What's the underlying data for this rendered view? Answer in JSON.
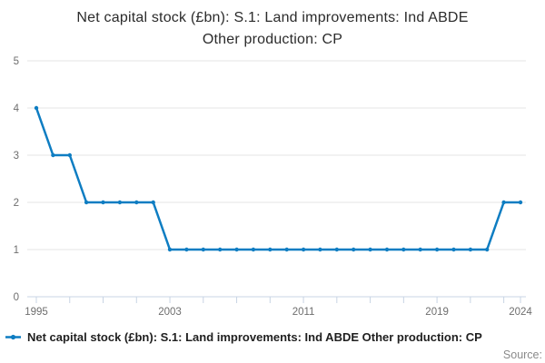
{
  "title": {
    "line1": "Net capital stock (£bn): S.1: Land improvements: Ind ABDE",
    "line2": "Other production: CP"
  },
  "legend": {
    "label": "Net capital stock (£bn): S.1: Land improvements: Ind ABDE Other production: CP"
  },
  "source_label": "Source:",
  "colors": {
    "series": "#0e7dc2",
    "grid": "#e6e6e6",
    "axis": "#c8d4e4",
    "tick_label": "#6e6e6e",
    "title_text": "#2b2b2b",
    "legend_text": "#1f1f1f",
    "source_text": "#8a8a8a"
  },
  "chart_data": {
    "type": "line",
    "title": "Net capital stock (£bn): S.1: Land improvements: Ind ABDE Other production: CP",
    "xlabel": "",
    "ylabel": "",
    "x": [
      1995,
      1996,
      1997,
      1998,
      1999,
      2000,
      2001,
      2002,
      2003,
      2004,
      2005,
      2006,
      2007,
      2008,
      2009,
      2010,
      2011,
      2012,
      2013,
      2014,
      2015,
      2016,
      2017,
      2018,
      2019,
      2020,
      2021,
      2022,
      2023,
      2024
    ],
    "values": [
      4,
      3,
      3,
      2,
      2,
      2,
      2,
      2,
      1,
      1,
      1,
      1,
      1,
      1,
      1,
      1,
      1,
      1,
      1,
      1,
      1,
      1,
      1,
      1,
      1,
      1,
      1,
      1,
      2,
      2
    ],
    "series_name": "Net capital stock (£bn): S.1: Land improvements: Ind ABDE Other production: CP",
    "xlim": [
      1994.5,
      2024.4
    ],
    "ylim": [
      0,
      5
    ],
    "yticks": [
      0,
      1,
      2,
      3,
      4,
      5
    ],
    "xtick_labels": [
      1995,
      2003,
      2011,
      2019,
      2024
    ],
    "minor_xtick_step": 2,
    "grid": true,
    "marker": "circle",
    "legend_position": "bottom-left"
  }
}
